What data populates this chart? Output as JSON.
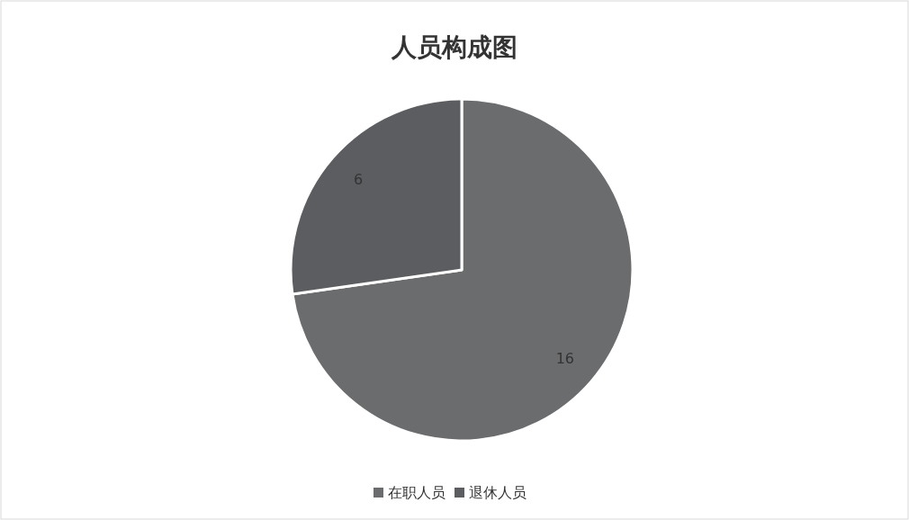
{
  "chart_data": {
    "type": "pie",
    "title": "人员构成图",
    "categories": [
      "在职人员",
      "退休人员"
    ],
    "values": [
      16,
      6
    ],
    "colors": [
      "#6b6c6e",
      "#5c5d60"
    ],
    "data_labels": true,
    "legend": "bottom"
  }
}
